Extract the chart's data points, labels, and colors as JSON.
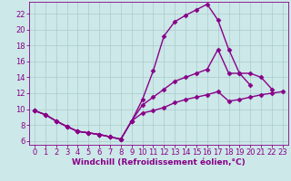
{
  "background_color": "#cce8e8",
  "grid_color": "#aacccc",
  "line_color": "#880088",
  "marker": "D",
  "markersize": 2.5,
  "linewidth": 1.0,
  "xlabel": "Windchill (Refroidissement éolien,°C)",
  "xlabel_fontsize": 6.5,
  "tick_fontsize": 6.0,
  "ylim": [
    5.5,
    23.5
  ],
  "xlim": [
    -0.5,
    23.5
  ],
  "yticks": [
    6,
    8,
    10,
    12,
    14,
    16,
    18,
    20,
    22
  ],
  "xticks": [
    0,
    1,
    2,
    3,
    4,
    5,
    6,
    7,
    8,
    9,
    10,
    11,
    12,
    13,
    14,
    15,
    16,
    17,
    18,
    19,
    20,
    21,
    22,
    23
  ],
  "s1_x": [
    0,
    1,
    2,
    3,
    4,
    5,
    6,
    7,
    8,
    9,
    10,
    11,
    12,
    13,
    14,
    15,
    16,
    17,
    18,
    19,
    20
  ],
  "s1_y": [
    9.8,
    9.3,
    8.5,
    7.8,
    7.2,
    7.0,
    6.8,
    6.5,
    6.2,
    8.5,
    11.2,
    14.8,
    19.2,
    21.0,
    21.8,
    22.5,
    23.2,
    21.2,
    17.5,
    14.5,
    13.0
  ],
  "s2_x": [
    0,
    1,
    2,
    3,
    4,
    5,
    6,
    7,
    8,
    9,
    10,
    11,
    12,
    13,
    14,
    15,
    16,
    17,
    18,
    19,
    20,
    21,
    22
  ],
  "s2_y": [
    9.8,
    9.3,
    8.5,
    7.8,
    7.2,
    7.0,
    6.8,
    6.5,
    6.2,
    8.5,
    10.5,
    11.5,
    12.5,
    13.5,
    14.0,
    14.5,
    15.0,
    17.5,
    14.5,
    14.5,
    14.5,
    14.0,
    12.5
  ],
  "s3_x": [
    0,
    1,
    2,
    3,
    4,
    5,
    6,
    7,
    8,
    9,
    10,
    11,
    12,
    13,
    14,
    15,
    16,
    17,
    18,
    19,
    20,
    21,
    22,
    23
  ],
  "s3_y": [
    9.8,
    9.3,
    8.5,
    7.8,
    7.2,
    7.0,
    6.8,
    6.5,
    6.2,
    8.5,
    9.5,
    9.8,
    10.2,
    10.8,
    11.2,
    11.5,
    11.8,
    12.2,
    11.0,
    11.2,
    11.5,
    11.8,
    12.0,
    12.2
  ]
}
